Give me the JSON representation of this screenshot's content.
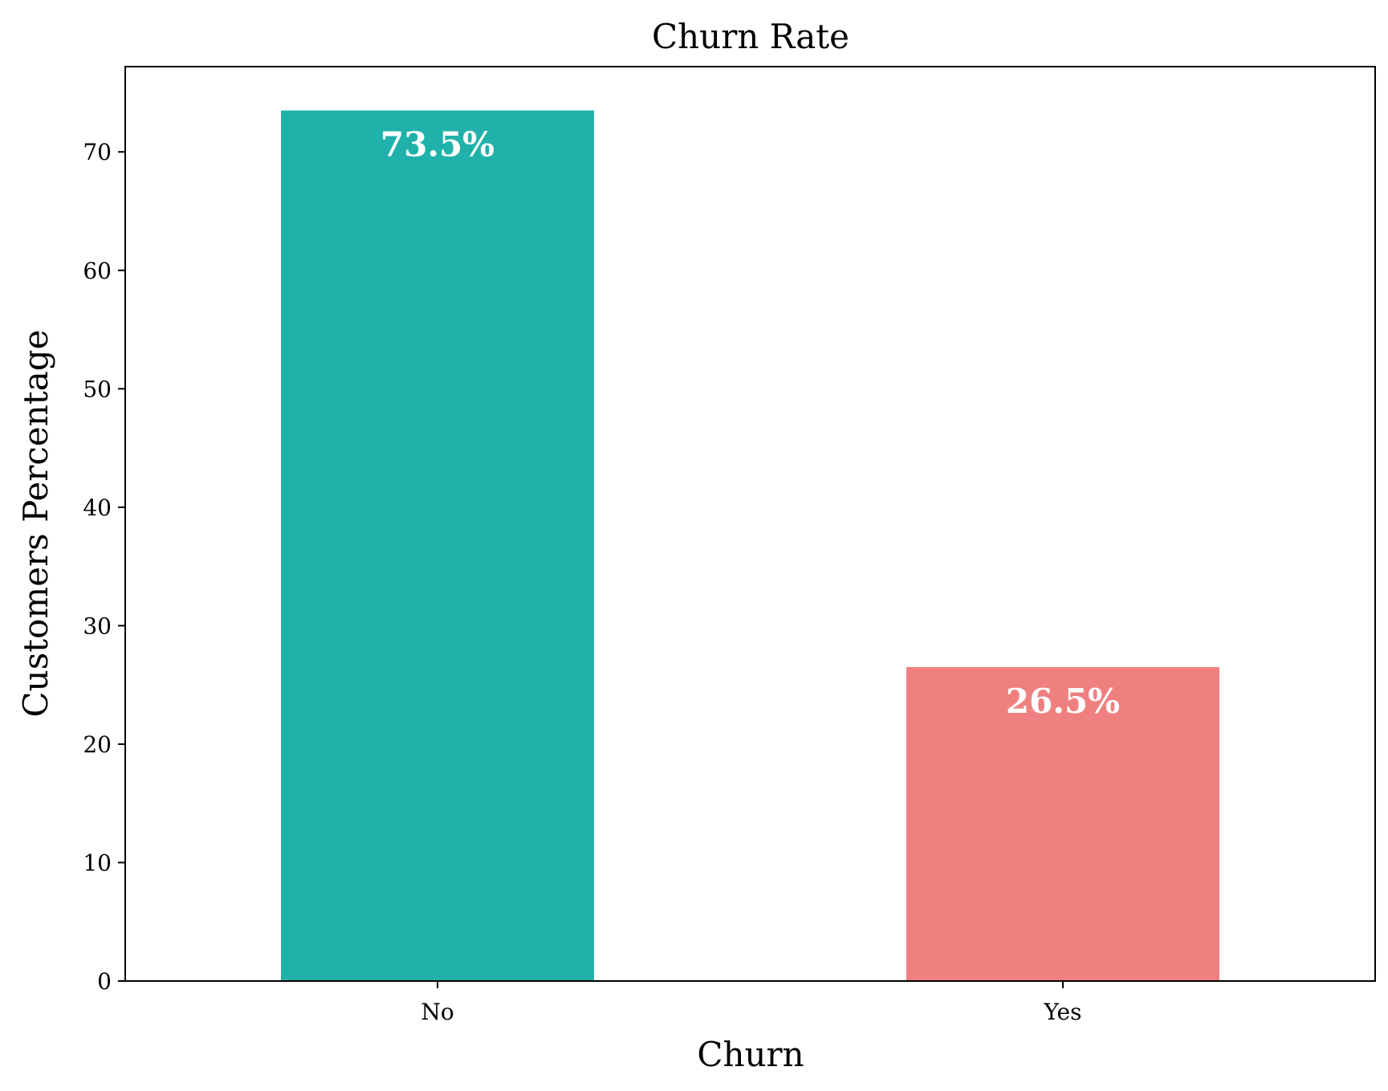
{
  "chart_data": {
    "type": "bar",
    "title": "Churn Rate",
    "xlabel": "Churn",
    "ylabel": "Customers Percentage",
    "categories": [
      "No",
      "Yes"
    ],
    "values": [
      73.5,
      26.5
    ],
    "data_labels": [
      "73.5%",
      "26.5%"
    ],
    "colors": [
      "#20b2aa",
      "#f08080"
    ],
    "ylim": [
      0,
      77.2
    ],
    "yticks": [
      0,
      10,
      20,
      30,
      40,
      50,
      60,
      70
    ],
    "ytick_labels": [
      "0",
      "10",
      "20",
      "30",
      "40",
      "50",
      "60",
      "70"
    ],
    "grid": false,
    "legend": "none"
  }
}
